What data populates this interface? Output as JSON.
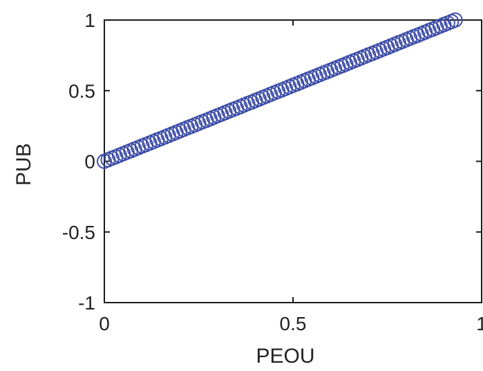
{
  "chart_data": {
    "type": "scatter",
    "xlabel": "PEOU",
    "ylabel": "PUB",
    "xlim": [
      0,
      1
    ],
    "ylim": [
      -1,
      1
    ],
    "xticks": [
      0,
      0.5,
      1
    ],
    "xtick_labels": [
      "0",
      "0.5",
      "1"
    ],
    "yticks": [
      -1,
      -0.5,
      0,
      0.5,
      1
    ],
    "ytick_labels": [
      "-1",
      "-0.5",
      "0",
      "0.5",
      "1"
    ],
    "grid": false,
    "marker": "circle-open",
    "marker_color": "#3f4fa8",
    "series": [
      {
        "x": [
          0.0,
          0.01,
          0.02,
          0.03,
          0.04,
          0.05,
          0.06,
          0.07,
          0.08,
          0.09,
          0.1,
          0.11,
          0.12,
          0.13,
          0.14,
          0.15,
          0.16,
          0.17,
          0.18,
          0.19,
          0.2,
          0.21,
          0.22,
          0.23,
          0.24,
          0.25,
          0.26,
          0.27,
          0.28,
          0.29,
          0.3,
          0.31,
          0.32,
          0.33,
          0.34,
          0.35,
          0.36,
          0.37,
          0.38,
          0.39,
          0.4,
          0.41,
          0.42,
          0.43,
          0.44,
          0.45,
          0.46,
          0.47,
          0.48,
          0.49,
          0.5,
          0.51,
          0.52,
          0.53,
          0.54,
          0.55,
          0.56,
          0.57,
          0.58,
          0.59,
          0.6,
          0.61,
          0.62,
          0.63,
          0.64,
          0.65,
          0.66,
          0.67,
          0.68,
          0.69,
          0.7,
          0.71,
          0.72,
          0.73,
          0.74,
          0.75,
          0.76,
          0.77,
          0.78,
          0.79,
          0.8,
          0.81,
          0.82,
          0.83,
          0.84,
          0.85,
          0.86,
          0.87,
          0.88,
          0.89,
          0.9,
          0.91,
          0.92,
          0.93
        ],
        "y": [
          0.0,
          0.011,
          0.022,
          0.032,
          0.043,
          0.054,
          0.065,
          0.075,
          0.086,
          0.097,
          0.108,
          0.118,
          0.129,
          0.14,
          0.151,
          0.161,
          0.172,
          0.183,
          0.194,
          0.204,
          0.215,
          0.226,
          0.237,
          0.247,
          0.258,
          0.269,
          0.28,
          0.29,
          0.301,
          0.312,
          0.323,
          0.333,
          0.344,
          0.355,
          0.366,
          0.376,
          0.387,
          0.398,
          0.409,
          0.419,
          0.43,
          0.441,
          0.452,
          0.462,
          0.473,
          0.484,
          0.495,
          0.505,
          0.516,
          0.527,
          0.538,
          0.548,
          0.559,
          0.57,
          0.581,
          0.591,
          0.602,
          0.613,
          0.624,
          0.634,
          0.645,
          0.656,
          0.667,
          0.677,
          0.688,
          0.699,
          0.71,
          0.72,
          0.731,
          0.742,
          0.753,
          0.763,
          0.774,
          0.785,
          0.796,
          0.806,
          0.817,
          0.828,
          0.839,
          0.849,
          0.86,
          0.871,
          0.882,
          0.892,
          0.903,
          0.914,
          0.925,
          0.935,
          0.946,
          0.957,
          0.968,
          0.978,
          0.989,
          1.0
        ]
      }
    ]
  }
}
